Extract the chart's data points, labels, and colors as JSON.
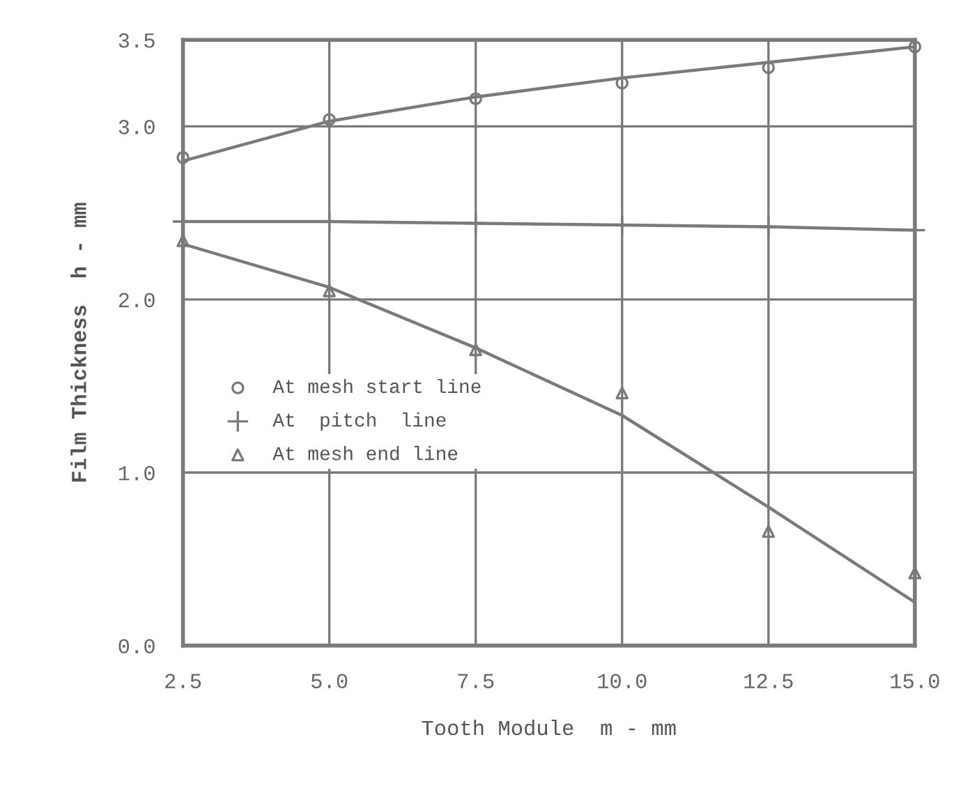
{
  "chart_data": {
    "type": "scatter",
    "xlabel": "Tooth Module  m - mm",
    "ylabel": "Film Thickness  h - mm",
    "x": [
      2.5,
      5.0,
      7.5,
      10.0,
      12.5,
      15.0
    ],
    "xlim": [
      2.5,
      15.0
    ],
    "xticks": [
      2.5,
      {
        "value": 5,
        "label": "5.0"
      },
      7.5,
      {
        "value": 10,
        "label": "10.0"
      },
      12.5,
      {
        "value": 15,
        "label": "15.0"
      }
    ],
    "ylim": [
      0,
      3.5
    ],
    "yticks": [
      {
        "value": 0,
        "label": "0.0"
      },
      {
        "value": 1,
        "label": "1.0"
      },
      {
        "value": 2,
        "label": "2.0"
      },
      {
        "value": 3,
        "label": "3.0"
      },
      3.5
    ],
    "grid": true,
    "legend": "left",
    "series": [
      {
        "name": "At mesh start line",
        "marker": "circle",
        "color": "#7a7a7a",
        "values": [
          2.82,
          3.04,
          3.16,
          3.25,
          3.34,
          3.46
        ]
      },
      {
        "name": "At  pitch  line",
        "marker": "cross",
        "color": "#7a7a7a",
        "values": [
          2.45,
          2.45,
          2.44,
          2.43,
          2.42,
          2.4
        ]
      },
      {
        "name": "At mesh end line",
        "marker": "triangle",
        "color": "#7a7a7a",
        "values": [
          2.34,
          2.05,
          1.71,
          1.46,
          0.66,
          0.42
        ]
      },
      {
        "type": "line",
        "marker": "none",
        "color": "#7a7a7a",
        "values": [
          2.8,
          3.03,
          3.17,
          3.28,
          3.37,
          3.46
        ]
      },
      {
        "type": "line",
        "marker": "none",
        "color": "#7a7a7a",
        "values": [
          2.45,
          2.45,
          2.44,
          2.43,
          2.42,
          2.4
        ]
      },
      {
        "type": "line",
        "marker": "none",
        "color": "#7a7a7a",
        "values": [
          2.32,
          2.07,
          1.72,
          1.33,
          0.8,
          0.25
        ]
      }
    ]
  }
}
